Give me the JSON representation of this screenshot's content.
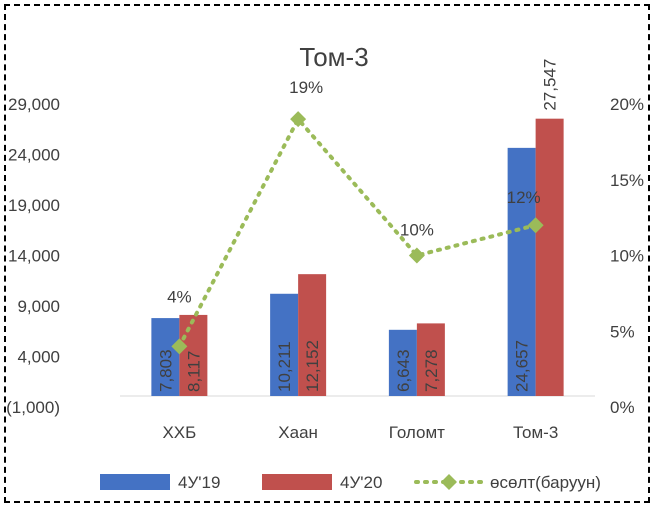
{
  "chart_data": {
    "type": "bar",
    "title": "Том-3",
    "categories": [
      "ХХБ",
      "Хаан",
      "Голомт",
      "Том-3"
    ],
    "series": [
      {
        "name": "4У'19",
        "type": "bar",
        "axis": "left",
        "color": "#4472C4",
        "values": [
          7803,
          10211,
          6643,
          24657
        ],
        "labels": [
          "7,803",
          "10,211",
          "6,643",
          "24,657"
        ]
      },
      {
        "name": "4У'20",
        "type": "bar",
        "axis": "left",
        "color": "#C0504D",
        "values": [
          8117,
          12152,
          7278,
          27547
        ],
        "labels": [
          "8,117",
          "12,152",
          "7,278",
          "27,547"
        ]
      },
      {
        "name": "өсөлт(баруун)",
        "type": "line",
        "axis": "right",
        "color": "#9BBB59",
        "values": [
          4,
          19,
          10,
          12
        ],
        "labels": [
          "4%",
          "19%",
          "10%",
          "12%"
        ]
      }
    ],
    "left_axis": {
      "ylim": [
        -1000,
        29000
      ],
      "ticks": [
        "(1,000)",
        "4,000",
        "9,000",
        "14,000",
        "19,000",
        "24,000",
        "29,000"
      ]
    },
    "right_axis": {
      "ylim": [
        0,
        20
      ],
      "ticks": [
        "0%",
        "5%",
        "10%",
        "15%",
        "20%"
      ]
    },
    "legend_position": "bottom",
    "grid": false
  }
}
